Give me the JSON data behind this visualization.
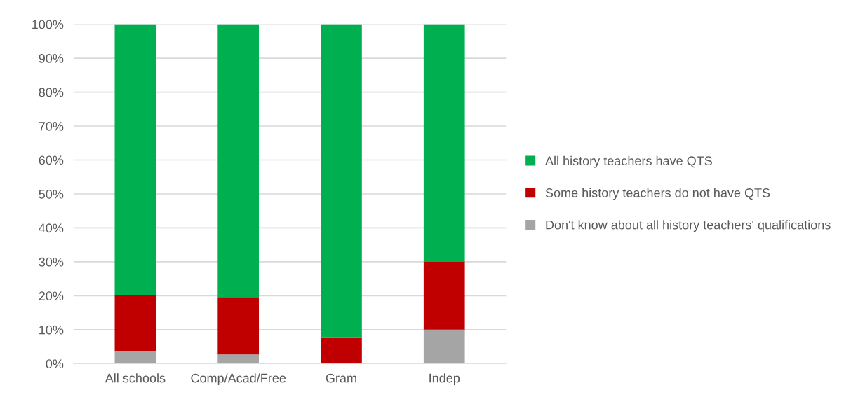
{
  "chart_data": {
    "type": "bar",
    "stacked": true,
    "categories": [
      "All schools",
      "Comp/Acad/Free",
      "Gram",
      "Indep"
    ],
    "series": [
      {
        "name": "Don't know about all history teachers' qualifications",
        "color": "#a5a5a5",
        "values": [
          3.7,
          2.7,
          0,
          10
        ]
      },
      {
        "name": "Some history teachers do not have QTS",
        "color": "#c00000",
        "values": [
          16.6,
          16.9,
          7.6,
          20
        ]
      },
      {
        "name": "All history teachers have QTS",
        "color": "#00b050",
        "values": [
          79.7,
          80.4,
          92.4,
          70
        ]
      }
    ],
    "ylim": [
      0,
      100
    ],
    "yticks": [
      {
        "value": 0,
        "label": "0%"
      },
      {
        "value": 10,
        "label": "10%"
      },
      {
        "value": 20,
        "label": "20%"
      },
      {
        "value": 30,
        "label": "30%"
      },
      {
        "value": 40,
        "label": "40%"
      },
      {
        "value": 50,
        "label": "50%"
      },
      {
        "value": 60,
        "label": "60%"
      },
      {
        "value": 70,
        "label": "70%"
      },
      {
        "value": 80,
        "label": "80%"
      },
      {
        "value": 90,
        "label": "90%"
      },
      {
        "value": 100,
        "label": "100%"
      }
    ],
    "grid": "y",
    "legend": "right"
  }
}
